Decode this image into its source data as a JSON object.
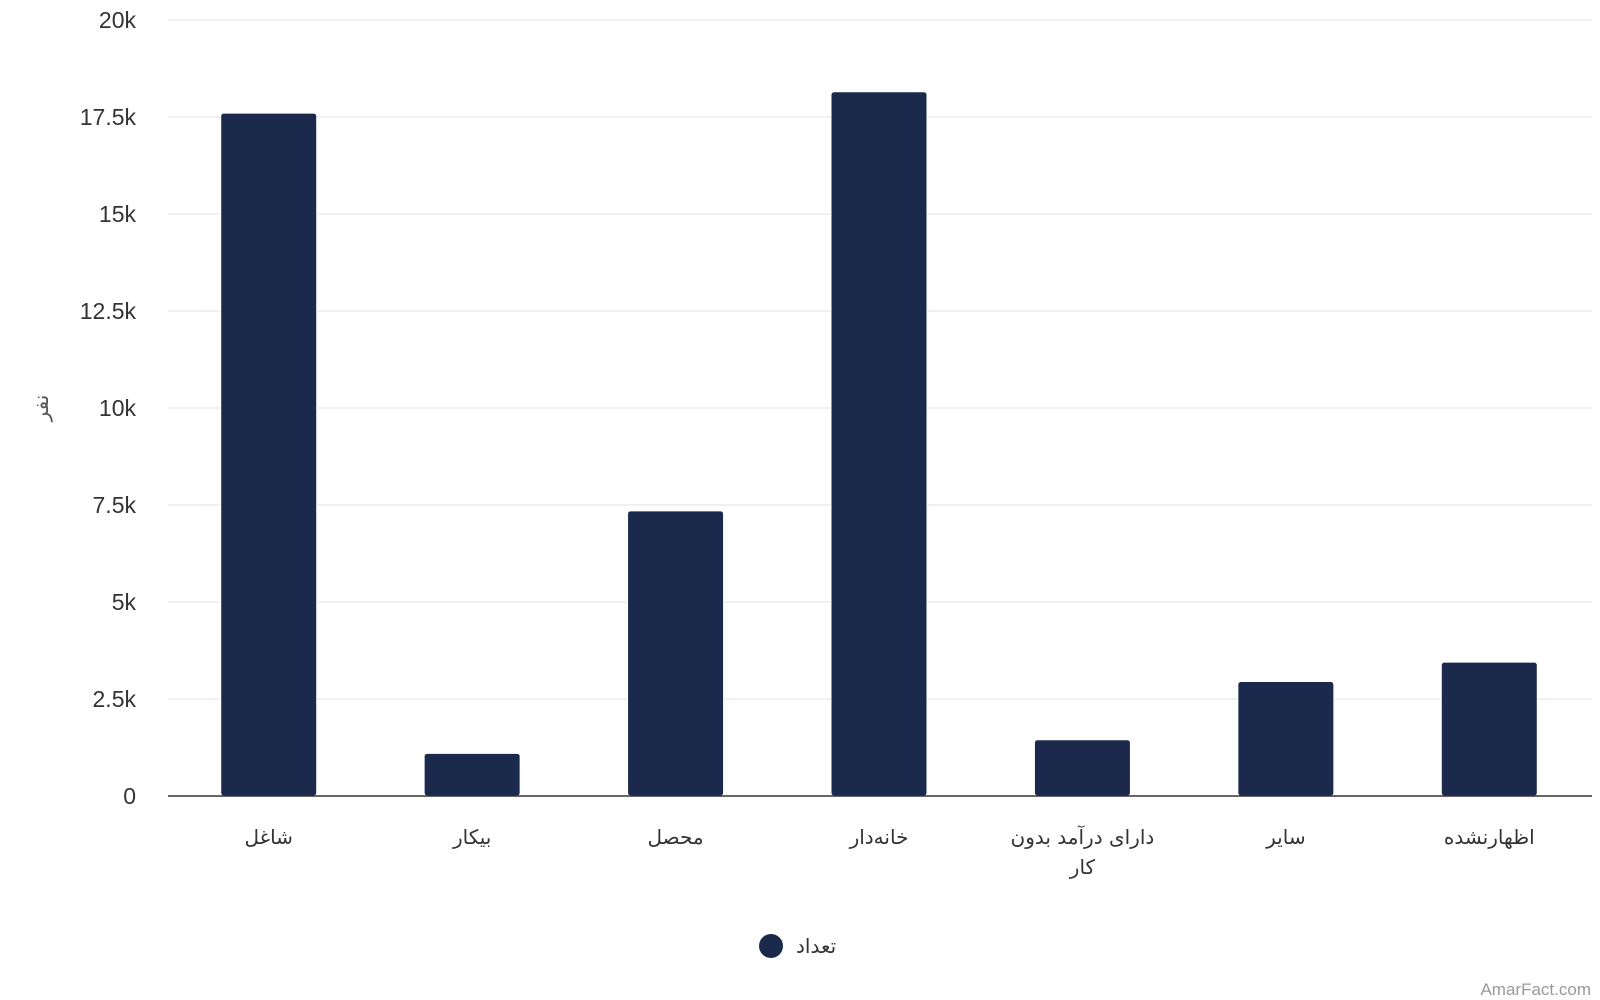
{
  "chart_data": {
    "type": "bar",
    "categories": [
      "شاغل",
      "بیکار",
      "محصل",
      "خانه‌دار",
      "دارای درآمد بدون کار",
      "سایر",
      "اظهارنشده"
    ],
    "series": [
      {
        "name": "تعداد",
        "values": [
          17600,
          1100,
          7350,
          18150,
          1450,
          2950,
          3450
        ]
      }
    ],
    "ylabel": "نفر",
    "ylim": [
      0,
      20000
    ],
    "yticks": [
      0,
      2500,
      5000,
      7500,
      10000,
      12500,
      15000,
      17500,
      20000
    ],
    "ytick_labels": [
      "0",
      "2.5k",
      "5k",
      "7.5k",
      "10k",
      "12.5k",
      "15k",
      "17.5k",
      "20k"
    ],
    "grid": true,
    "legend_position": "bottom-center",
    "bar_color": "#1b2a4c"
  },
  "credit": "AmarFact.com"
}
